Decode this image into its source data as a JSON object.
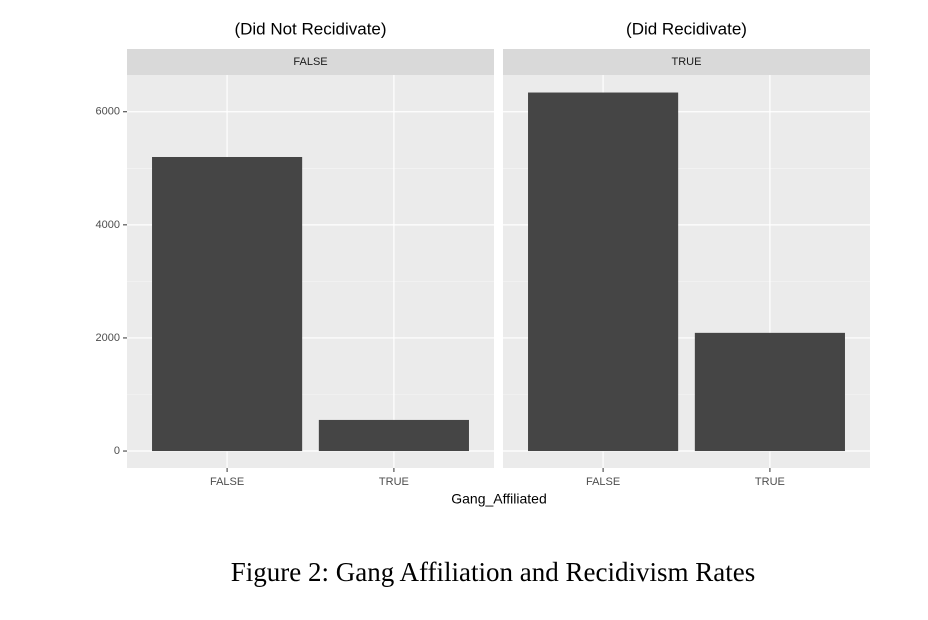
{
  "chart_data": {
    "type": "bar",
    "facets": [
      {
        "title": "(Did Not Recidivate)",
        "strip": "FALSE",
        "categories": [
          "FALSE",
          "TRUE"
        ],
        "values": [
          5200,
          550
        ]
      },
      {
        "title": "(Did Recidivate)",
        "strip": "TRUE",
        "categories": [
          "FALSE",
          "TRUE"
        ],
        "values": [
          6340,
          2090
        ]
      }
    ],
    "x_label": "Gang_Affiliated",
    "ylim": [
      -300,
      6650
    ],
    "yticks": [
      0,
      2000,
      4000,
      6000
    ],
    "color": "#454545",
    "grid": true
  },
  "caption": "Figure 2: Gang Affiliation and Recidivism Rates"
}
